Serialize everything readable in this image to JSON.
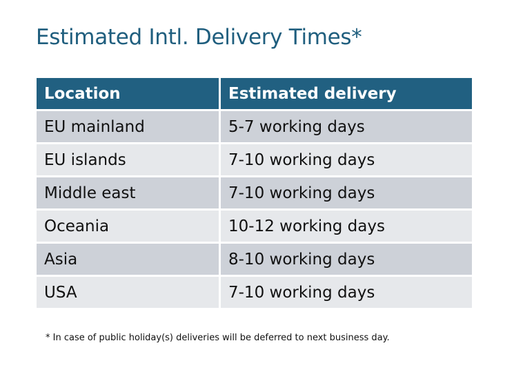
{
  "title": "Estimated Intl. Delivery Times*",
  "table": {
    "headers": [
      "Location",
      "Estimated delivery"
    ],
    "rows": [
      [
        "EU mainland",
        "5-7 working days"
      ],
      [
        "EU islands",
        "7-10 working days"
      ],
      [
        "Middle east",
        "7-10 working days"
      ],
      [
        "Oceania",
        "10-12 working days"
      ],
      [
        "Asia",
        "8-10 working days"
      ],
      [
        "USA",
        "7-10 working days"
      ]
    ]
  },
  "footnote": "* In case of public holiday(s) deliveries will be deferred to next business day.",
  "colors": {
    "header": "#216081",
    "title": "#1f5e7e",
    "row_odd": "#cdd1d8",
    "row_even": "#e6e8eb"
  }
}
